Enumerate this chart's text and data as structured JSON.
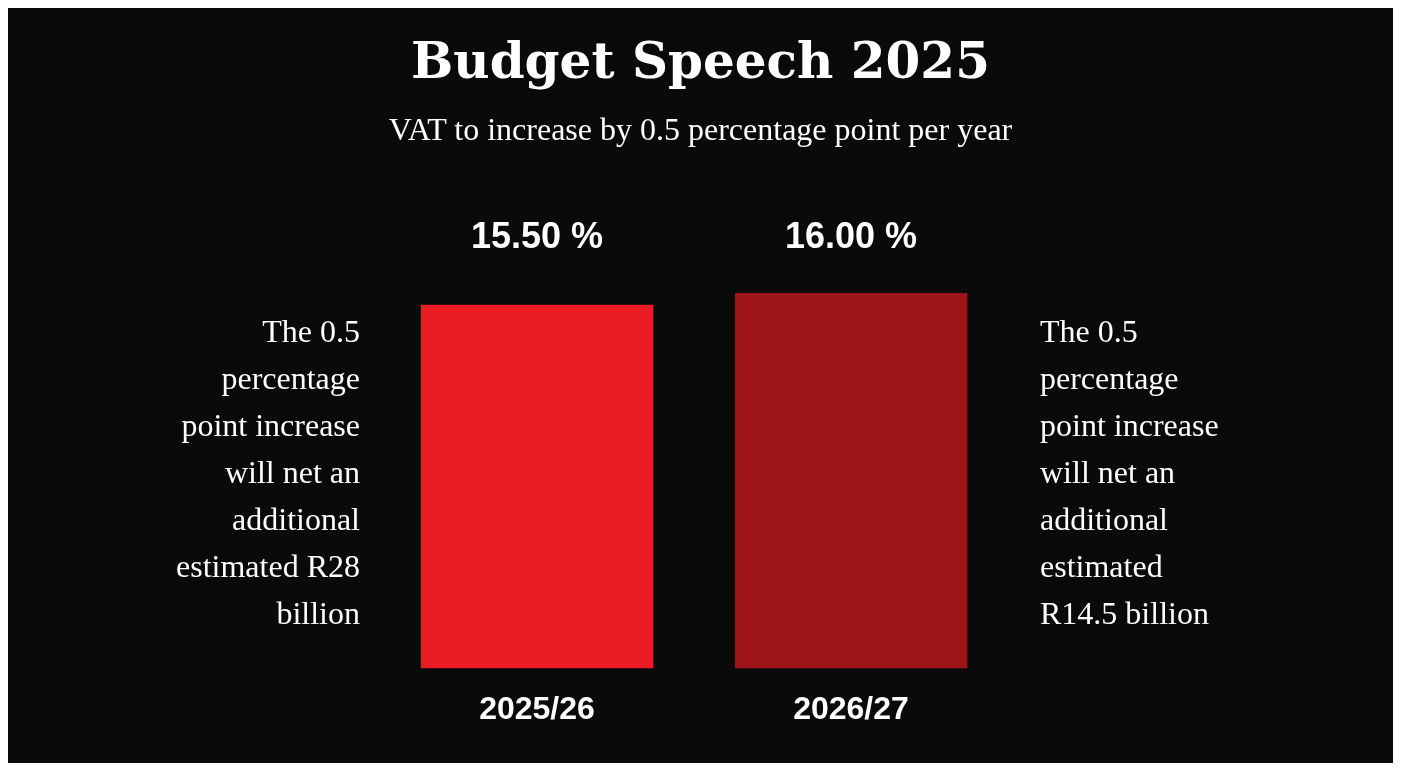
{
  "chart_data": {
    "type": "bar",
    "title": "Budget Speech 2025",
    "subtitle": "VAT to increase by 0.5 percentage point per year",
    "categories": [
      "2025/26",
      "2026/27"
    ],
    "values": [
      15.5,
      16.0
    ],
    "colors": [
      "#ec1c24",
      "#9e1418"
    ],
    "value_labels": [
      "15.50 %",
      "16.00 %"
    ],
    "annotations": [
      "The 0.5 percentage point increase will net an additional estimated R28 billion",
      "The 0.5 percentage point increase will net an additional estimated R14.5 billion"
    ],
    "legend": false
  }
}
